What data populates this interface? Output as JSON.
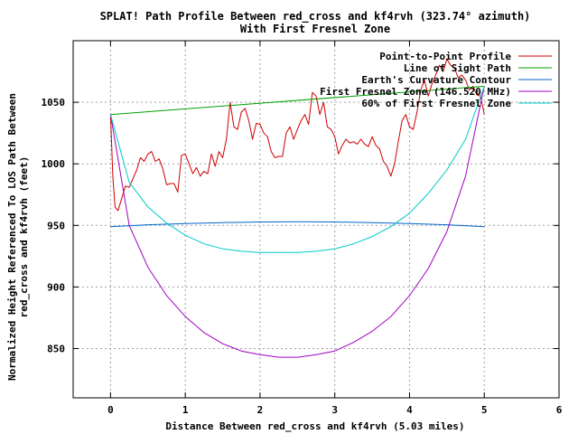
{
  "chart_data": {
    "type": "line",
    "title": "SPLAT! Path Profile Between red_cross and kf4rvh (323.74° azimuth)",
    "subtitle": "With First Fresnel Zone",
    "xlabel": "Distance Between red_cross and kf4rvh (5.03 miles)",
    "ylabel_line1": "Normalized Height Referenced To LOS Path Between",
    "ylabel_line2": "red_cross and kf4rvh (feet)",
    "xlim": [
      -0.5,
      6
    ],
    "ylim": [
      810,
      1100
    ],
    "x_ticks": [
      0,
      1,
      2,
      3,
      4,
      5,
      6
    ],
    "y_ticks": [
      850,
      900,
      950,
      1000,
      1050
    ],
    "grid": true,
    "legend_position": "top-right",
    "series": [
      {
        "name": "Point-to-Point Profile",
        "color": "#cc0000",
        "x": [
          0,
          0.03,
          0.06,
          0.1,
          0.15,
          0.2,
          0.25,
          0.3,
          0.35,
          0.4,
          0.45,
          0.5,
          0.55,
          0.6,
          0.65,
          0.7,
          0.75,
          0.8,
          0.85,
          0.9,
          0.95,
          1.0,
          1.05,
          1.1,
          1.15,
          1.2,
          1.25,
          1.3,
          1.35,
          1.4,
          1.45,
          1.5,
          1.55,
          1.6,
          1.65,
          1.7,
          1.75,
          1.8,
          1.85,
          1.9,
          1.95,
          2.0,
          2.05,
          2.1,
          2.15,
          2.2,
          2.25,
          2.3,
          2.35,
          2.4,
          2.45,
          2.5,
          2.55,
          2.6,
          2.65,
          2.7,
          2.75,
          2.8,
          2.85,
          2.9,
          2.95,
          3.0,
          3.05,
          3.1,
          3.15,
          3.2,
          3.25,
          3.3,
          3.35,
          3.4,
          3.45,
          3.5,
          3.55,
          3.6,
          3.65,
          3.7,
          3.75,
          3.8,
          3.85,
          3.9,
          3.95,
          4.0,
          4.05,
          4.1,
          4.15,
          4.2,
          4.25,
          4.3,
          4.35,
          4.4,
          4.45,
          4.5,
          4.55,
          4.6,
          4.65,
          4.7,
          4.75,
          4.8,
          4.85,
          4.9,
          4.95,
          5.0
        ],
        "values": [
          1040,
          990,
          965,
          962,
          972,
          982,
          981,
          988,
          995,
          1005,
          1002,
          1008,
          1010,
          1002,
          1004,
          996,
          983,
          984,
          984,
          977,
          1007,
          1008,
          1000,
          992,
          997,
          990,
          994,
          992,
          1008,
          998,
          1010,
          1005,
          1020,
          1050,
          1030,
          1028,
          1042,
          1045,
          1035,
          1020,
          1033,
          1032,
          1025,
          1022,
          1010,
          1005,
          1006,
          1006,
          1025,
          1030,
          1020,
          1028,
          1035,
          1040,
          1032,
          1058,
          1055,
          1040,
          1050,
          1030,
          1028,
          1022,
          1008,
          1015,
          1020,
          1017,
          1018,
          1016,
          1020,
          1016,
          1014,
          1022,
          1015,
          1012,
          1002,
          998,
          990,
          1000,
          1018,
          1035,
          1040,
          1030,
          1028,
          1042,
          1060,
          1068,
          1055,
          1065,
          1072,
          1080,
          1075,
          1085,
          1080,
          1078,
          1070,
          1072,
          1068,
          1060,
          1063,
          1056,
          1055,
          1040
        ]
      },
      {
        "name": "Line of Sight Path",
        "color": "#00a000",
        "x": [
          0,
          5.0
        ],
        "values": [
          1040,
          1063
        ]
      },
      {
        "name": "Earth's Curvature Contour",
        "color": "#0066cc",
        "x": [
          0,
          0.5,
          1.0,
          1.5,
          2.0,
          2.5,
          3.0,
          3.5,
          4.0,
          4.5,
          5.0
        ],
        "values": [
          949,
          950.5,
          951.5,
          952.3,
          952.8,
          953,
          952.8,
          952.3,
          951.5,
          950.5,
          949
        ]
      },
      {
        "name": "First Fresnel Zone (146.520 MHz)",
        "color": "#a000c0",
        "x": [
          0,
          0.25,
          0.5,
          0.75,
          1.0,
          1.25,
          1.5,
          1.75,
          2.0,
          2.25,
          2.5,
          2.75,
          3.0,
          3.25,
          3.5,
          3.75,
          4.0,
          4.25,
          4.5,
          4.75,
          5.0
        ],
        "values": [
          1040,
          950,
          916,
          893,
          876,
          863,
          854,
          848,
          845,
          843,
          843,
          845,
          848,
          855,
          864,
          876,
          893,
          915,
          945,
          990,
          1063
        ]
      },
      {
        "name": "60% of First Fresnel Zone",
        "color": "#00c8c8",
        "x": [
          0,
          0.25,
          0.5,
          0.75,
          1.0,
          1.25,
          1.5,
          1.75,
          2.0,
          2.25,
          2.5,
          2.75,
          3.0,
          3.25,
          3.5,
          3.75,
          4.0,
          4.25,
          4.5,
          4.75,
          5.0
        ],
        "values": [
          1040,
          985,
          965,
          952,
          942,
          935,
          931,
          929,
          928,
          928,
          928,
          929,
          931,
          935,
          941,
          949,
          960,
          976,
          995,
          1020,
          1063
        ]
      }
    ]
  }
}
